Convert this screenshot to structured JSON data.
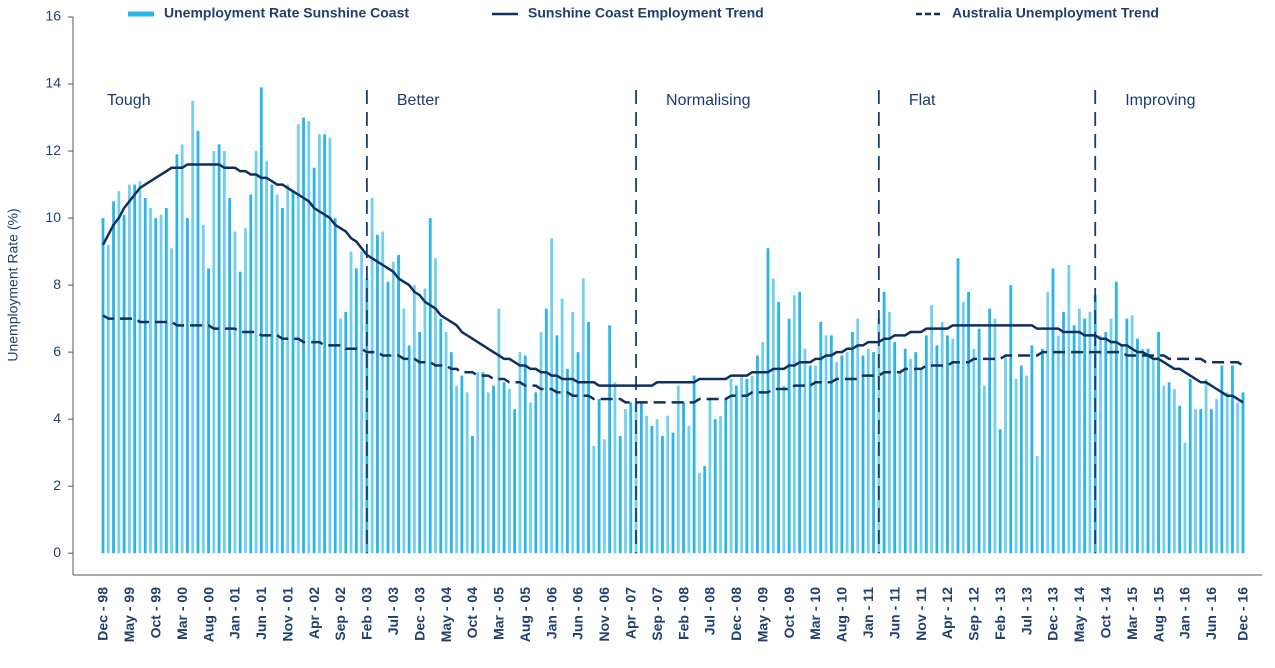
{
  "chart_data": {
    "type": "bar",
    "y_label": "Unemployment Rate (%)",
    "ylim": [
      -0.65,
      16
    ],
    "yticks": [
      0,
      2,
      4,
      6,
      8,
      10,
      12,
      14,
      16
    ],
    "legend": "top",
    "categories": [
      "Dec - 98",
      null,
      null,
      null,
      null,
      "May - 99",
      null,
      null,
      null,
      null,
      "Oct - 99",
      null,
      null,
      null,
      null,
      "Mar - 00",
      null,
      null,
      null,
      null,
      "Aug - 00",
      null,
      null,
      null,
      null,
      "Jan - 01",
      null,
      null,
      null,
      null,
      "Jun - 01",
      null,
      null,
      null,
      null,
      "Nov - 01",
      null,
      null,
      null,
      null,
      "Apr - 02",
      null,
      null,
      null,
      null,
      "Sep - 02",
      null,
      null,
      null,
      null,
      "Feb - 03",
      null,
      null,
      null,
      null,
      "Jul - 03",
      null,
      null,
      null,
      null,
      "Dec - 03",
      null,
      null,
      null,
      null,
      "May - 04",
      null,
      null,
      null,
      null,
      "Oct - 04",
      null,
      null,
      null,
      null,
      "Mar - 05",
      null,
      null,
      null,
      null,
      "Aug - 05",
      null,
      null,
      null,
      null,
      "Jan - 06",
      null,
      null,
      null,
      null,
      "Jun - 06",
      null,
      null,
      null,
      null,
      "Nov - 06",
      null,
      null,
      null,
      null,
      "Apr - 07",
      null,
      null,
      null,
      null,
      "Sep - 07",
      null,
      null,
      null,
      null,
      "Feb - 08",
      null,
      null,
      null,
      null,
      "Jul - 08",
      null,
      null,
      null,
      null,
      "Dec - 08",
      null,
      null,
      null,
      null,
      "May - 09",
      null,
      null,
      null,
      null,
      "Oct - 09",
      null,
      null,
      null,
      null,
      "Mar - 10",
      null,
      null,
      null,
      null,
      "Aug - 10",
      null,
      null,
      null,
      null,
      "Jan - 11",
      null,
      null,
      null,
      null,
      "Jun - 11",
      null,
      null,
      null,
      null,
      "Nov - 11",
      null,
      null,
      null,
      null,
      "Apr - 12",
      null,
      null,
      null,
      null,
      "Sep - 12",
      null,
      null,
      null,
      null,
      "Feb - 13",
      null,
      null,
      null,
      null,
      "Jul - 13",
      null,
      null,
      null,
      null,
      "Dec - 13",
      null,
      null,
      null,
      null,
      "May - 14",
      null,
      null,
      null,
      null,
      "Oct - 14",
      null,
      null,
      null,
      null,
      "Mar - 15",
      null,
      null,
      null,
      null,
      "Aug - 15",
      null,
      null,
      null,
      null,
      "Jan - 16",
      null,
      null,
      null,
      null,
      "Jun - 16",
      null,
      null,
      null,
      null,
      null,
      "Dec - 16"
    ],
    "series": [
      {
        "name": "Unemployment Rate Sunshine Coast",
        "type": "bar",
        "color": "#29b5e5",
        "values": [
          10.0,
          9.2,
          10.5,
          10.8,
          10.1,
          11.0,
          11.0,
          11.1,
          10.6,
          10.3,
          10.0,
          10.1,
          10.3,
          9.1,
          11.9,
          12.2,
          10.0,
          13.5,
          12.6,
          9.8,
          8.5,
          12.0,
          12.2,
          12.0,
          10.6,
          9.6,
          8.4,
          9.7,
          10.7,
          12.0,
          13.9,
          11.7,
          11.0,
          10.7,
          10.3,
          11.0,
          10.8,
          12.8,
          13.0,
          12.9,
          11.5,
          12.5,
          12.5,
          12.4,
          10.0,
          7.0,
          7.2,
          9.0,
          8.5,
          9.0,
          8.2,
          10.6,
          9.5,
          9.6,
          8.1,
          8.7,
          8.9,
          7.3,
          6.2,
          8.0,
          6.6,
          7.9,
          10.0,
          8.8,
          7.0,
          6.6,
          6.0,
          5.0,
          5.3,
          4.8,
          3.5,
          5.4,
          5.4,
          4.8,
          5.0,
          7.3,
          5.1,
          4.9,
          4.3,
          6.0,
          5.9,
          4.5,
          4.8,
          6.6,
          7.3,
          9.4,
          6.5,
          7.6,
          5.5,
          7.2,
          6.0,
          8.2,
          6.9,
          3.2,
          4.6,
          3.4,
          6.8,
          5.1,
          3.5,
          4.3,
          4.5,
          4.5,
          4.5,
          4.1,
          3.8,
          4.0,
          3.5,
          4.1,
          3.6,
          5.0,
          4.5,
          3.8,
          5.3,
          2.4,
          2.6,
          4.6,
          4.0,
          4.1,
          4.6,
          5.2,
          5.0,
          5.3,
          5.2,
          5.3,
          5.9,
          6.3,
          9.1,
          8.2,
          7.5,
          5.0,
          7.0,
          7.7,
          7.8,
          6.1,
          5.6,
          5.6,
          6.9,
          6.5,
          6.5,
          5.7,
          5.9,
          6.0,
          6.6,
          7.0,
          5.9,
          6.1,
          6.0,
          7.0,
          7.8,
          7.2,
          6.3,
          5.4,
          6.1,
          5.8,
          6.0,
          5.5,
          6.5,
          7.4,
          6.2,
          6.9,
          6.5,
          6.4,
          8.8,
          7.5,
          7.8,
          6.1,
          6.7,
          5.0,
          7.3,
          7.0,
          3.7,
          5.9,
          8.0,
          5.2,
          5.6,
          5.3,
          6.2,
          2.9,
          6.1,
          7.8,
          8.5,
          6.5,
          7.2,
          8.6,
          6.8,
          7.3,
          7.0,
          7.2,
          7.7,
          6.5,
          6.6,
          7.0,
          8.1,
          6.2,
          7.0,
          7.1,
          6.4,
          6.1,
          6.1,
          5.8,
          6.6,
          5.0,
          5.1,
          4.9,
          4.4,
          3.3,
          5.2,
          4.3,
          4.3,
          5.2,
          4.3,
          4.6,
          5.6,
          4.8,
          5.6,
          4.5,
          4.8
        ]
      },
      {
        "name": "Sunshine Coast Employment Trend",
        "type": "line",
        "color": "#0f2f5f",
        "dash": false,
        "values": [
          9.2,
          9.5,
          9.8,
          10.0,
          10.3,
          10.5,
          10.7,
          10.9,
          11.0,
          11.1,
          11.2,
          11.3,
          11.4,
          11.5,
          11.5,
          11.5,
          11.6,
          11.6,
          11.6,
          11.6,
          11.6,
          11.6,
          11.6,
          11.5,
          11.5,
          11.5,
          11.4,
          11.4,
          11.3,
          11.3,
          11.2,
          11.2,
          11.1,
          11.0,
          11.0,
          10.9,
          10.8,
          10.7,
          10.6,
          10.5,
          10.3,
          10.2,
          10.1,
          10.0,
          9.8,
          9.7,
          9.6,
          9.4,
          9.3,
          9.1,
          8.9,
          8.8,
          8.7,
          8.6,
          8.5,
          8.4,
          8.2,
          8.1,
          8.0,
          7.8,
          7.7,
          7.5,
          7.4,
          7.3,
          7.1,
          7.0,
          6.9,
          6.8,
          6.6,
          6.5,
          6.4,
          6.3,
          6.2,
          6.1,
          6.0,
          5.9,
          5.8,
          5.8,
          5.7,
          5.6,
          5.6,
          5.5,
          5.5,
          5.4,
          5.4,
          5.3,
          5.3,
          5.2,
          5.2,
          5.2,
          5.1,
          5.1,
          5.1,
          5.1,
          5.0,
          5.0,
          5.0,
          5.0,
          5.0,
          5.0,
          5.0,
          5.0,
          5.0,
          5.0,
          5.0,
          5.1,
          5.1,
          5.1,
          5.1,
          5.1,
          5.1,
          5.1,
          5.1,
          5.2,
          5.2,
          5.2,
          5.2,
          5.2,
          5.2,
          5.3,
          5.3,
          5.3,
          5.3,
          5.4,
          5.4,
          5.4,
          5.4,
          5.5,
          5.5,
          5.5,
          5.6,
          5.6,
          5.7,
          5.7,
          5.7,
          5.8,
          5.8,
          5.9,
          5.9,
          6.0,
          6.0,
          6.1,
          6.1,
          6.2,
          6.2,
          6.3,
          6.3,
          6.3,
          6.4,
          6.4,
          6.5,
          6.5,
          6.5,
          6.6,
          6.6,
          6.6,
          6.7,
          6.7,
          6.7,
          6.7,
          6.7,
          6.8,
          6.8,
          6.8,
          6.8,
          6.8,
          6.8,
          6.8,
          6.8,
          6.8,
          6.8,
          6.8,
          6.8,
          6.8,
          6.8,
          6.8,
          6.8,
          6.7,
          6.7,
          6.7,
          6.7,
          6.7,
          6.6,
          6.6,
          6.6,
          6.6,
          6.5,
          6.5,
          6.5,
          6.4,
          6.4,
          6.3,
          6.3,
          6.2,
          6.2,
          6.1,
          6.0,
          6.0,
          5.9,
          5.8,
          5.8,
          5.7,
          5.6,
          5.5,
          5.5,
          5.4,
          5.3,
          5.2,
          5.1,
          5.1,
          5.0,
          4.9,
          4.8,
          4.7,
          4.7,
          4.6,
          4.5
        ]
      },
      {
        "name": "Australia Unemployment Trend",
        "type": "line",
        "color": "#0f2f5f",
        "dash": true,
        "values": [
          7.1,
          7.0,
          7.0,
          7.0,
          7.0,
          7.0,
          7.0,
          6.9,
          6.9,
          6.9,
          6.9,
          6.9,
          6.9,
          6.9,
          6.8,
          6.8,
          6.8,
          6.8,
          6.8,
          6.8,
          6.8,
          6.7,
          6.7,
          6.7,
          6.7,
          6.7,
          6.6,
          6.6,
          6.6,
          6.6,
          6.5,
          6.5,
          6.5,
          6.5,
          6.4,
          6.4,
          6.4,
          6.4,
          6.3,
          6.3,
          6.3,
          6.3,
          6.2,
          6.2,
          6.2,
          6.2,
          6.1,
          6.1,
          6.1,
          6.1,
          6.0,
          6.0,
          6.0,
          5.9,
          5.9,
          5.9,
          5.9,
          5.8,
          5.8,
          5.8,
          5.7,
          5.7,
          5.7,
          5.6,
          5.6,
          5.6,
          5.5,
          5.5,
          5.4,
          5.4,
          5.4,
          5.3,
          5.3,
          5.3,
          5.2,
          5.2,
          5.2,
          5.1,
          5.1,
          5.1,
          5.0,
          5.0,
          5.0,
          4.9,
          4.9,
          4.9,
          4.8,
          4.8,
          4.8,
          4.7,
          4.7,
          4.7,
          4.7,
          4.6,
          4.6,
          4.6,
          4.6,
          4.6,
          4.6,
          4.5,
          4.5,
          4.5,
          4.5,
          4.5,
          4.5,
          4.5,
          4.5,
          4.5,
          4.5,
          4.5,
          4.5,
          4.5,
          4.5,
          4.6,
          4.6,
          4.6,
          4.6,
          4.6,
          4.6,
          4.7,
          4.7,
          4.7,
          4.7,
          4.8,
          4.8,
          4.8,
          4.8,
          4.9,
          4.9,
          4.9,
          4.9,
          5.0,
          5.0,
          5.0,
          5.0,
          5.1,
          5.1,
          5.1,
          5.1,
          5.2,
          5.2,
          5.2,
          5.2,
          5.2,
          5.3,
          5.3,
          5.3,
          5.3,
          5.4,
          5.4,
          5.4,
          5.4,
          5.5,
          5.5,
          5.5,
          5.5,
          5.6,
          5.6,
          5.6,
          5.6,
          5.6,
          5.7,
          5.7,
          5.7,
          5.7,
          5.8,
          5.8,
          5.8,
          5.8,
          5.8,
          5.8,
          5.9,
          5.9,
          5.9,
          5.9,
          5.9,
          5.9,
          5.9,
          6.0,
          6.0,
          6.0,
          6.0,
          6.0,
          6.0,
          6.0,
          6.0,
          6.0,
          6.0,
          6.0,
          6.0,
          6.0,
          6.0,
          6.0,
          6.0,
          5.9,
          5.9,
          5.9,
          5.9,
          5.9,
          5.9,
          5.9,
          5.9,
          5.8,
          5.8,
          5.8,
          5.8,
          5.8,
          5.8,
          5.8,
          5.7,
          5.7,
          5.7,
          5.7,
          5.7,
          5.7,
          5.7,
          5.6
        ]
      }
    ],
    "annotations": [
      {
        "text": "Tough",
        "at": 0,
        "divider": false
      },
      {
        "text": "Better",
        "at": 50,
        "divider": true
      },
      {
        "text": "Normalising",
        "at": 101,
        "divider": true
      },
      {
        "text": "Flat",
        "at": 147,
        "divider": true
      },
      {
        "text": "Improving",
        "at": 188,
        "divider": true
      }
    ]
  }
}
